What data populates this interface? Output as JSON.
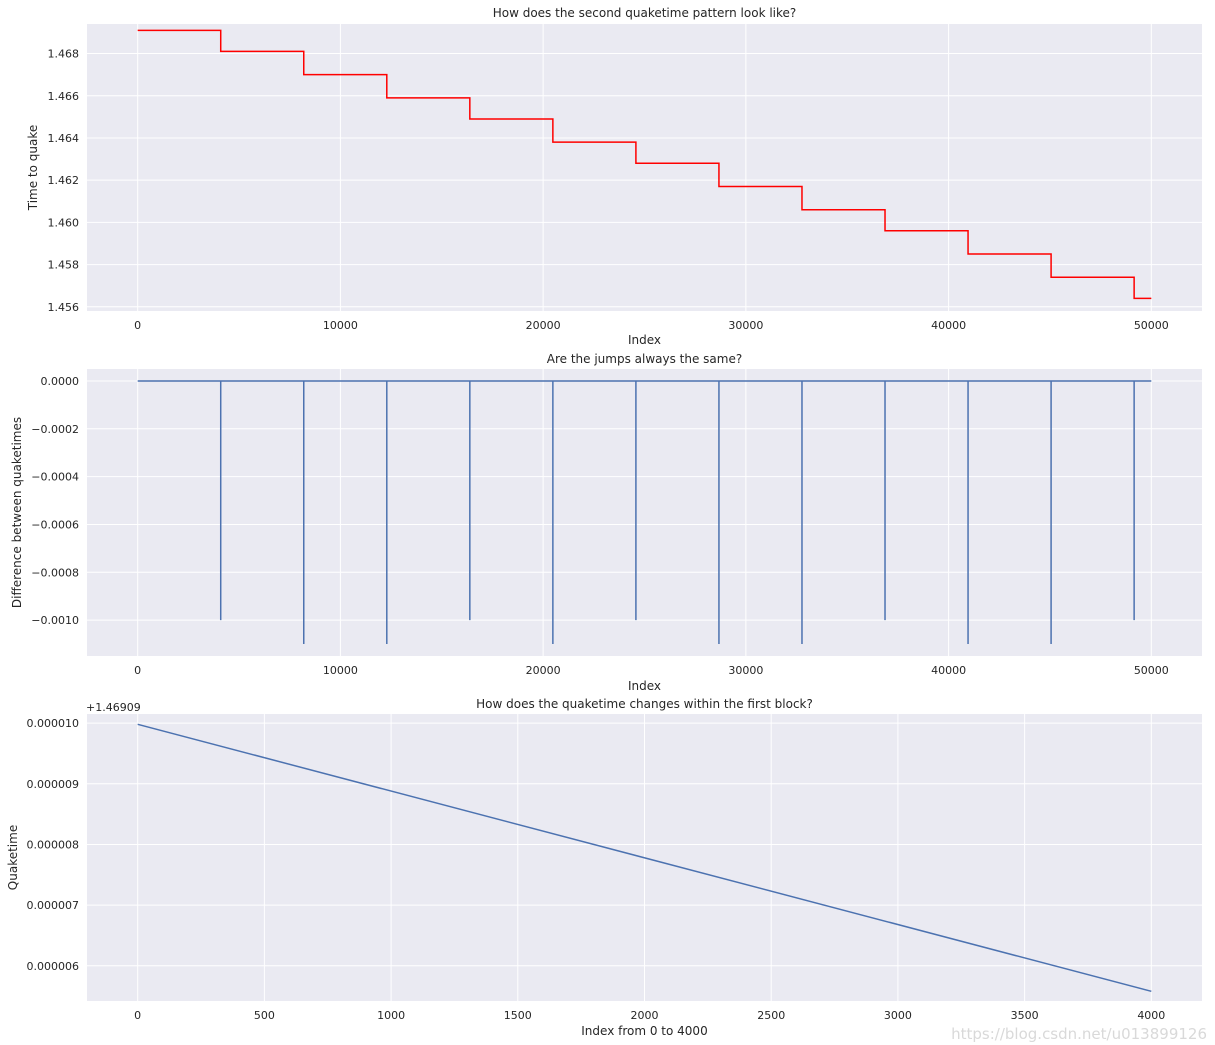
{
  "watermark": "https://blog.csdn.net/u013899126",
  "chart_data": [
    {
      "type": "line",
      "title": "How does the second quaketime pattern look like?",
      "xlabel": "Index",
      "ylabel": "Time to quake",
      "xlim": [
        -2500,
        52500
      ],
      "ylim": [
        1.4558,
        1.4694
      ],
      "grid": true,
      "xticks": [
        0,
        10000,
        20000,
        30000,
        40000,
        50000
      ],
      "xtick_labels": [
        "0",
        "10000",
        "20000",
        "30000",
        "40000",
        "50000"
      ],
      "yticks": [
        1.456,
        1.458,
        1.46,
        1.462,
        1.464,
        1.466,
        1.468
      ],
      "ytick_labels": [
        "1.456",
        "1.458",
        "1.460",
        "1.462",
        "1.464",
        "1.466",
        "1.468"
      ],
      "series": [
        {
          "color": "#ff0000",
          "step": true,
          "x": [
            0,
            4096,
            8192,
            12288,
            16384,
            20480,
            24576,
            28672,
            32768,
            36864,
            40960,
            45056,
            49152,
            50000
          ],
          "y": [
            1.4691,
            1.4681,
            1.467,
            1.4659,
            1.4649,
            1.4638,
            1.4628,
            1.4617,
            1.4606,
            1.4596,
            1.4585,
            1.4574,
            1.4564,
            1.4564
          ]
        }
      ]
    },
    {
      "type": "line",
      "title": "Are the jumps always the same?",
      "xlabel": "Index",
      "ylabel": "Difference between quaketimes",
      "xlim": [
        -2500,
        52500
      ],
      "ylim": [
        -0.00115,
        5e-05
      ],
      "grid": true,
      "xticks": [
        0,
        10000,
        20000,
        30000,
        40000,
        50000
      ],
      "xtick_labels": [
        "0",
        "10000",
        "20000",
        "30000",
        "40000",
        "50000"
      ],
      "yticks": [
        0,
        -0.0002,
        -0.0004,
        -0.0006,
        -0.0008,
        -0.001
      ],
      "ytick_labels": [
        "0.0000",
        "−0.0002",
        "−0.0004",
        "−0.0006",
        "−0.0008",
        "−0.0010"
      ],
      "series": [
        {
          "color": "#4c72b0",
          "spikes": true,
          "baseline": 0,
          "x": [
            4096,
            8192,
            12288,
            16384,
            20480,
            24576,
            28672,
            32768,
            36864,
            40960,
            45056,
            49152
          ],
          "y": [
            -0.001,
            -0.0011,
            -0.0011,
            -0.001,
            -0.0011,
            -0.001,
            -0.0011,
            -0.0011,
            -0.001,
            -0.0011,
            -0.0011,
            -0.001
          ],
          "xrange": [
            0,
            50000
          ]
        }
      ]
    },
    {
      "type": "line",
      "title": "How does the quaketime changes within the first block?",
      "xlabel": "Index from 0 to 4000",
      "ylabel": "Quaketime",
      "y_offset_label": "+1.46909",
      "xlim": [
        -200,
        4200
      ],
      "ylim": [
        5.42e-06,
        1.015e-05
      ],
      "grid": true,
      "xticks": [
        0,
        500,
        1000,
        1500,
        2000,
        2500,
        3000,
        3500,
        4000
      ],
      "xtick_labels": [
        "0",
        "500",
        "1000",
        "1500",
        "2000",
        "2500",
        "3000",
        "3500",
        "4000"
      ],
      "yticks": [
        6e-06,
        7e-06,
        8e-06,
        9e-06,
        1e-05
      ],
      "ytick_labels": [
        "0.000006",
        "0.000007",
        "0.000008",
        "0.000009",
        "0.000010"
      ],
      "series": [
        {
          "color": "#4c72b0",
          "x": [
            0,
            4000
          ],
          "y": [
            9.98e-06,
            5.58e-06
          ]
        }
      ]
    }
  ]
}
